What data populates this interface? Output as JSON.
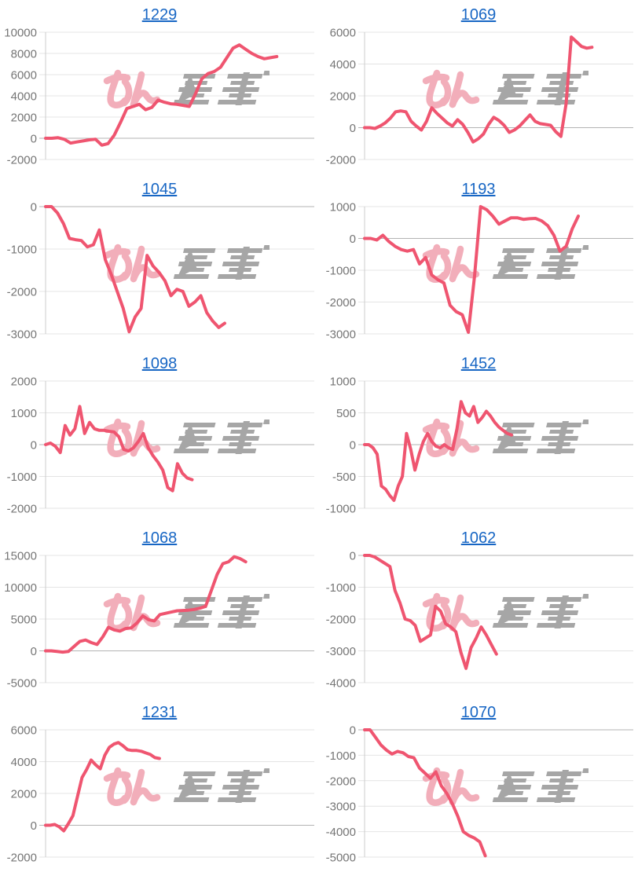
{
  "page": {
    "background": "#FFFFFF"
  },
  "style": {
    "line_color": "#EF5570",
    "title_color": "#1766C4",
    "tick_color": "#757575",
    "grid_color": "#E4E4E4",
    "zero_line_color": "#B3B3B3",
    "axis_line_color": "#CDCDCD",
    "watermark_pink": "#F2AEBA",
    "watermark_gray": "#A6A6A6"
  },
  "watermark": {
    "name": "minrepo-watermark-logo",
    "text_pink": "みん",
    "text_gray": "レポ"
  },
  "chart_data": [
    {
      "type": "line",
      "title": "1229",
      "ylim": [
        -2000,
        10000
      ],
      "yticks": [
        "10000",
        "8000",
        "6000",
        "4000",
        "2000",
        "0",
        "-2000"
      ],
      "slots": 44,
      "values": [
        0,
        0,
        50,
        -100,
        -450,
        -350,
        -250,
        -150,
        -100,
        -650,
        -500,
        300,
        1500,
        2800,
        3000,
        3200,
        2700,
        2900,
        3600,
        3400,
        3250,
        3200,
        3100,
        3000,
        4200,
        5600,
        6100,
        6300,
        6700,
        7600,
        8500,
        8800,
        8400,
        8000,
        7700,
        7500,
        7600,
        7700
      ]
    },
    {
      "type": "line",
      "title": "1069",
      "ylim": [
        -2000,
        6000
      ],
      "yticks": [
        "6000",
        "4000",
        "2000",
        "0",
        "-2000"
      ],
      "slots": 53,
      "values": [
        0,
        0,
        -50,
        100,
        300,
        600,
        1000,
        1050,
        1000,
        400,
        100,
        -150,
        400,
        1250,
        900,
        600,
        300,
        100,
        500,
        200,
        -300,
        -900,
        -700,
        -400,
        200,
        650,
        450,
        150,
        -300,
        -150,
        100,
        450,
        800,
        400,
        250,
        200,
        150,
        -250,
        -550,
        1500,
        5700,
        5400,
        5100,
        5000,
        5050
      ]
    },
    {
      "type": "line",
      "title": "1045",
      "ylim": [
        -3000,
        0
      ],
      "yticks": [
        "0",
        "-1000",
        "-2000",
        "-3000"
      ],
      "slots": 46,
      "values": [
        0,
        0,
        -150,
        -400,
        -750,
        -780,
        -800,
        -950,
        -900,
        -550,
        -1250,
        -1600,
        -2000,
        -2400,
        -2950,
        -2600,
        -2400,
        -1150,
        -1400,
        -1550,
        -1750,
        -2100,
        -1950,
        -2000,
        -2350,
        -2250,
        -2100,
        -2500,
        -2700,
        -2850,
        -2750
      ]
    },
    {
      "type": "line",
      "title": "1193",
      "ylim": [
        -3000,
        1000
      ],
      "yticks": [
        "1000",
        "0",
        "-1000",
        "-2000",
        "-3000"
      ],
      "slots": 45,
      "values": [
        0,
        0,
        -50,
        100,
        -100,
        -250,
        -350,
        -400,
        -350,
        -800,
        -600,
        -1150,
        -1300,
        -1400,
        -2100,
        -2300,
        -2400,
        -2950,
        -1200,
        1000,
        900,
        700,
        450,
        550,
        650,
        650,
        600,
        620,
        630,
        550,
        400,
        100,
        -400,
        -250,
        300,
        700
      ]
    },
    {
      "type": "line",
      "title": "1098",
      "ylim": [
        -2000,
        2000
      ],
      "yticks": [
        "2000",
        "1000",
        "0",
        "-1000",
        "-2000"
      ],
      "slots": 56,
      "values": [
        0,
        50,
        -50,
        -250,
        600,
        300,
        500,
        1200,
        350,
        700,
        500,
        450,
        450,
        420,
        400,
        250,
        -150,
        -200,
        -100,
        100,
        350,
        -100,
        -350,
        -550,
        -800,
        -1350,
        -1450,
        -600,
        -900,
        -1050,
        -1100
      ]
    },
    {
      "type": "line",
      "title": "1452",
      "ylim": [
        -1000,
        1000
      ],
      "yticks": [
        "1000",
        "500",
        "0",
        "-500",
        "-1000"
      ],
      "slots": 65,
      "values": [
        0,
        0,
        -50,
        -150,
        -650,
        -700,
        -800,
        -875,
        -650,
        -500,
        175,
        -75,
        -400,
        -150,
        50,
        175,
        50,
        -25,
        -50,
        0,
        -50,
        -75,
        250,
        675,
        500,
        450,
        600,
        350,
        425,
        525,
        450,
        350,
        275,
        225,
        175,
        150
      ]
    },
    {
      "type": "line",
      "title": "1068",
      "ylim": [
        -5000,
        15000
      ],
      "yticks": [
        "15000",
        "10000",
        "5000",
        "0",
        "-5000"
      ],
      "slots": 48,
      "values": [
        0,
        0,
        -100,
        -200,
        -100,
        700,
        1500,
        1700,
        1300,
        1000,
        2200,
        3700,
        3300,
        3100,
        3500,
        3600,
        4400,
        5500,
        4900,
        4700,
        5700,
        5900,
        6100,
        6300,
        6350,
        6400,
        6500,
        6700,
        7000,
        9500,
        12000,
        13700,
        14000,
        14800,
        14500,
        14000
      ]
    },
    {
      "type": "line",
      "title": "1062",
      "ylim": [
        -4000,
        0
      ],
      "yticks": [
        "0",
        "-1000",
        "-2000",
        "-3000",
        "-4000"
      ],
      "slots": 54,
      "values": [
        0,
        0,
        -50,
        -150,
        -250,
        -350,
        -1100,
        -1500,
        -2000,
        -2050,
        -2200,
        -2700,
        -2600,
        -2500,
        -1600,
        -1750,
        -2150,
        -2250,
        -2400,
        -3050,
        -3550,
        -2900,
        -2600,
        -2250,
        -2500,
        -2800,
        -3100
      ]
    },
    {
      "type": "line",
      "title": "1231",
      "ylim": [
        -2000,
        6000
      ],
      "yticks": [
        "6000",
        "4000",
        "2000",
        "0",
        "-2000"
      ],
      "slots": 60,
      "values": [
        0,
        0,
        50,
        -100,
        -350,
        100,
        600,
        1800,
        3000,
        3500,
        4100,
        3800,
        3550,
        4400,
        4900,
        5100,
        5200,
        5000,
        4750,
        4700,
        4700,
        4650,
        4550,
        4450,
        4250,
        4200
      ]
    },
    {
      "type": "line",
      "title": "1070",
      "ylim": [
        -5000,
        0
      ],
      "yticks": [
        "0",
        "-1000",
        "-2000",
        "-3000",
        "-4000",
        "-5000"
      ],
      "slots": 50,
      "values": [
        0,
        0,
        -300,
        -600,
        -800,
        -950,
        -850,
        -900,
        -1050,
        -1100,
        -1500,
        -1700,
        -1900,
        -1650,
        -2200,
        -2500,
        -2900,
        -3400,
        -4000,
        -4150,
        -4250,
        -4400,
        -4950
      ]
    }
  ]
}
